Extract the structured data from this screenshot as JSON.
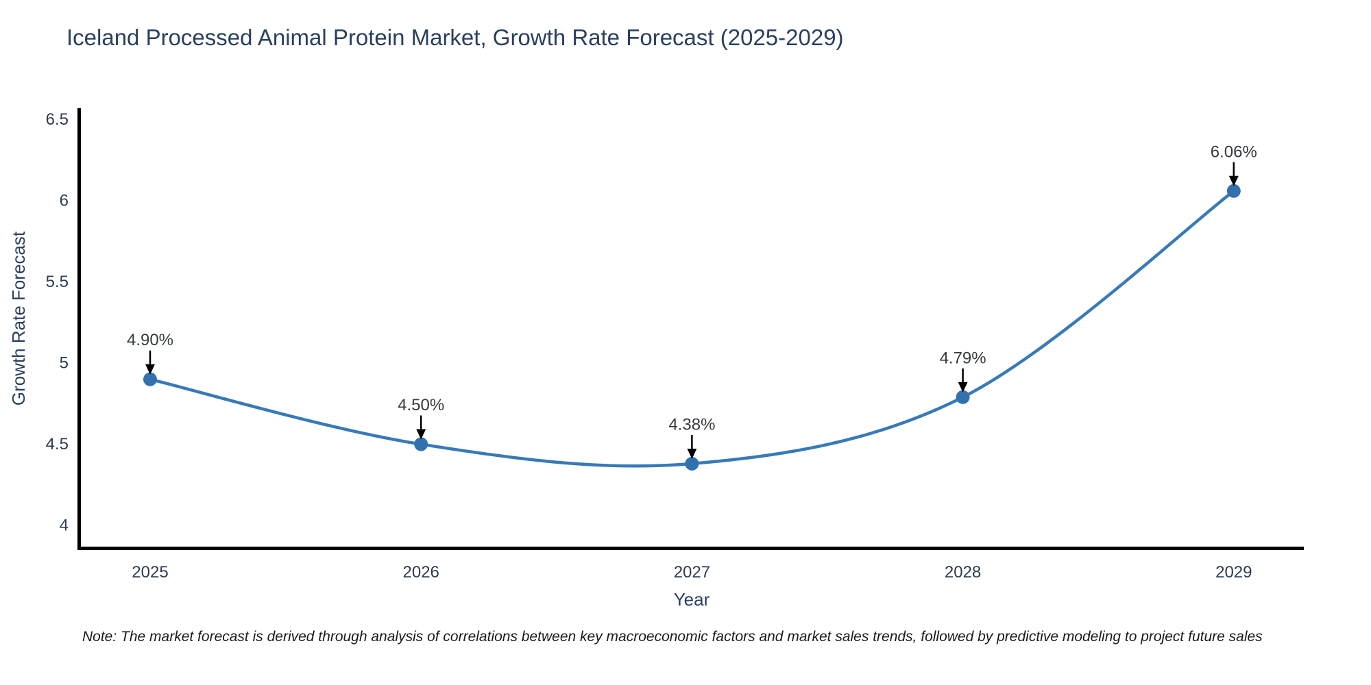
{
  "title": "Iceland Processed Animal Protein Market, Growth Rate Forecast (2025-2029)",
  "note": "Note: The market forecast is derived through analysis of correlations between key macroeconomic factors and market sales trends, followed by predictive modeling to project future sales",
  "chart_data": {
    "type": "line",
    "title": "Iceland Processed Animal Protein Market, Growth Rate Forecast (2025-2029)",
    "xlabel": "Year",
    "ylabel": "Growth Rate Forecast",
    "categories": [
      "2025",
      "2026",
      "2027",
      "2028",
      "2029"
    ],
    "values": [
      4.9,
      4.5,
      4.38,
      4.79,
      6.06
    ],
    "point_labels": [
      "4.90%",
      "4.50%",
      "4.38%",
      "4.79%",
      "6.06%"
    ],
    "yticks": [
      4,
      4.5,
      5,
      5.5,
      6,
      6.5
    ],
    "ytick_labels": [
      "4",
      "4.5",
      "5",
      "5.5",
      "6",
      "6.5"
    ],
    "ylim": [
      3.87,
      6.6
    ],
    "line_shape": "spline",
    "grid": false,
    "legend": false,
    "colors": {
      "line": "#3879b8",
      "marker": "#3172ae",
      "axis": "#000000",
      "arrow": "#000000",
      "tick_text": "#2f3b52",
      "title_text": "#2a3f5f",
      "annotation_text": "#363a3f"
    }
  }
}
